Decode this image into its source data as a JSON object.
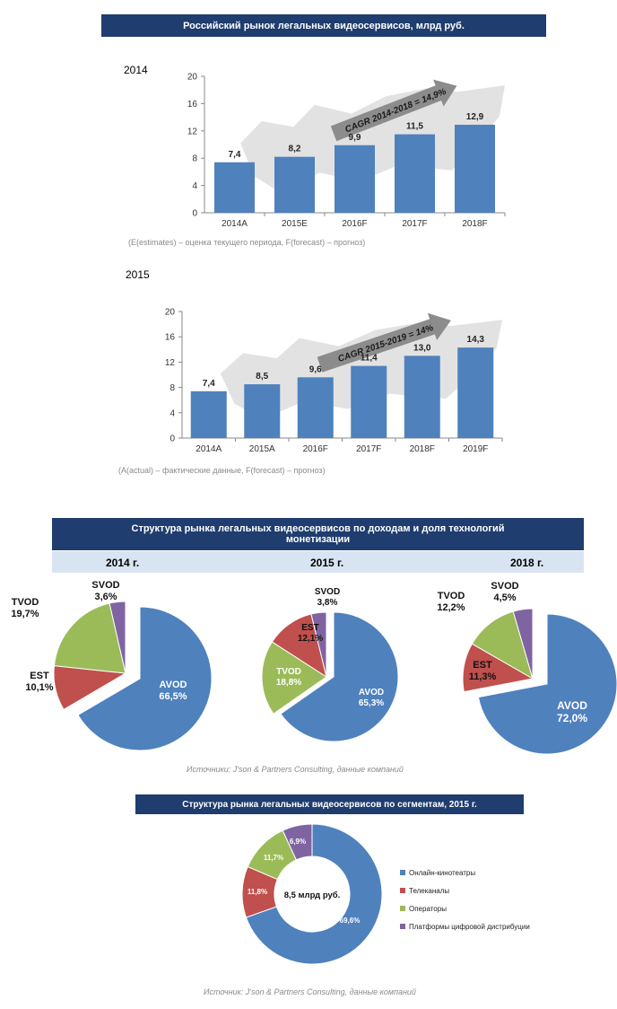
{
  "header_1": "Российский рынок легальных видеосервисов, млрд руб.",
  "year_2014": "2014",
  "year_2015": "2015",
  "note_1": "(E(estimates) – оценка текущего периода, F(forecast) – прогноз)",
  "note_2": "(A(actual) – фактические данные, F(forecast) – прогноз)",
  "header_2": "Структура рынка  легальных видеосервисов по доходам и доля технологий монетизации",
  "pie_years": [
    "2014 г.",
    "2015 г.",
    "2018 г."
  ],
  "source_1": "Источники: J'son & Partners Consulting, данные компаний",
  "header_3": "Структура рынка легальных видеосервисов по сегментам, 2015 г.",
  "source_2": "Источник: J'son & Partners Consulting, данные компаний",
  "colors": {
    "blue": "#4f81bd",
    "red": "#c0504d",
    "green": "#9bbb59",
    "purple": "#8064a2",
    "banner": "#1f3d6e"
  },
  "chart_data": [
    {
      "type": "bar",
      "categories": [
        "2014A",
        "2015E",
        "2016F",
        "2017F",
        "2018F"
      ],
      "values": [
        7.4,
        8.2,
        9.9,
        11.5,
        12.9
      ],
      "labels": [
        "7,4",
        "8,2",
        "9,9",
        "11,5",
        "12,9"
      ],
      "yticks": [
        "0",
        "4",
        "8",
        "12",
        "16",
        "20"
      ],
      "ylim": [
        0,
        20
      ],
      "annotation": "CAGR 2014-2018 = 14,9%"
    },
    {
      "type": "bar",
      "categories": [
        "2014A",
        "2015A",
        "2016F",
        "2017F",
        "2018F",
        "2019F"
      ],
      "values": [
        7.4,
        8.5,
        9.6,
        11.4,
        13.0,
        14.3
      ],
      "labels": [
        "7,4",
        "8,5",
        "9,6",
        "11,4",
        "13,0",
        "14,3"
      ],
      "yticks": [
        "0",
        "4",
        "8",
        "12",
        "16",
        "20"
      ],
      "ylim": [
        0,
        20
      ],
      "annotation": "CAGR 2015-2019 = 14%"
    },
    {
      "type": "pie",
      "year": "2014 г.",
      "slices": [
        {
          "name": "AVOD",
          "value": 66.5,
          "label": "66,5%"
        },
        {
          "name": "EST",
          "value": 10.1,
          "label": "10,1%"
        },
        {
          "name": "TVOD",
          "value": 19.7,
          "label": "19,7%"
        },
        {
          "name": "SVOD",
          "value": 3.6,
          "label": "3,6%"
        }
      ]
    },
    {
      "type": "pie",
      "year": "2015 г.",
      "slices": [
        {
          "name": "AVOD",
          "value": 65.3,
          "label": "65,3%"
        },
        {
          "name": "TVOD",
          "value": 18.8,
          "label": "18,8%"
        },
        {
          "name": "EST",
          "value": 12.1,
          "label": "12,1%"
        },
        {
          "name": "SVOD",
          "value": 3.8,
          "label": "3,8%"
        }
      ]
    },
    {
      "type": "pie",
      "year": "2018 г.",
      "slices": [
        {
          "name": "AVOD",
          "value": 72.0,
          "label": "72,0%"
        },
        {
          "name": "EST",
          "value": 11.3,
          "label": "11,3%"
        },
        {
          "name": "TVOD",
          "value": 12.2,
          "label": "12,2%"
        },
        {
          "name": "SVOD",
          "value": 4.5,
          "label": "4,5%"
        }
      ]
    },
    {
      "type": "pie",
      "center_label": "8,5 млрд руб.",
      "slices": [
        {
          "name": "Онлайн-кинотеатры",
          "value": 69.6,
          "label": "69,6%"
        },
        {
          "name": "Телеканалы",
          "value": 11.8,
          "label": "11,8%"
        },
        {
          "name": "Операторы",
          "value": 11.7,
          "label": "11,7%"
        },
        {
          "name": "Платформы цифровой дистрибуции",
          "value": 6.9,
          "label": "6,9%"
        }
      ]
    }
  ]
}
